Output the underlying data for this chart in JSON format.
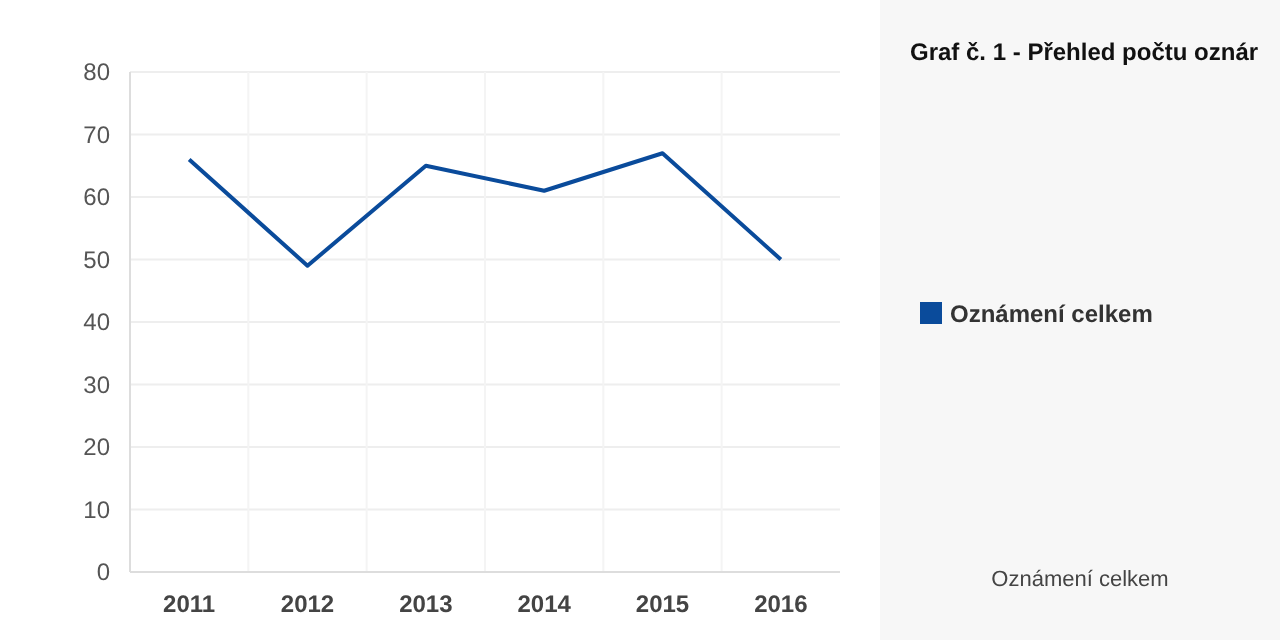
{
  "chart_data": {
    "type": "line",
    "title": "Graf č. 1 - Přehled počtu oznár",
    "categories": [
      "2011",
      "2012",
      "2013",
      "2014",
      "2015",
      "2016"
    ],
    "series": [
      {
        "name": "Oznámení celkem",
        "color": "#0a4b9b",
        "values": [
          66,
          49,
          65,
          61,
          67,
          50
        ]
      }
    ],
    "ylim": [
      0,
      80
    ],
    "yticks": [
      0,
      10,
      20,
      30,
      40,
      50,
      60,
      70,
      80
    ],
    "grid": true,
    "legend": "right",
    "marker": "none",
    "line_style": "solid",
    "annotations": [
      "Oznámení celkem"
    ]
  }
}
